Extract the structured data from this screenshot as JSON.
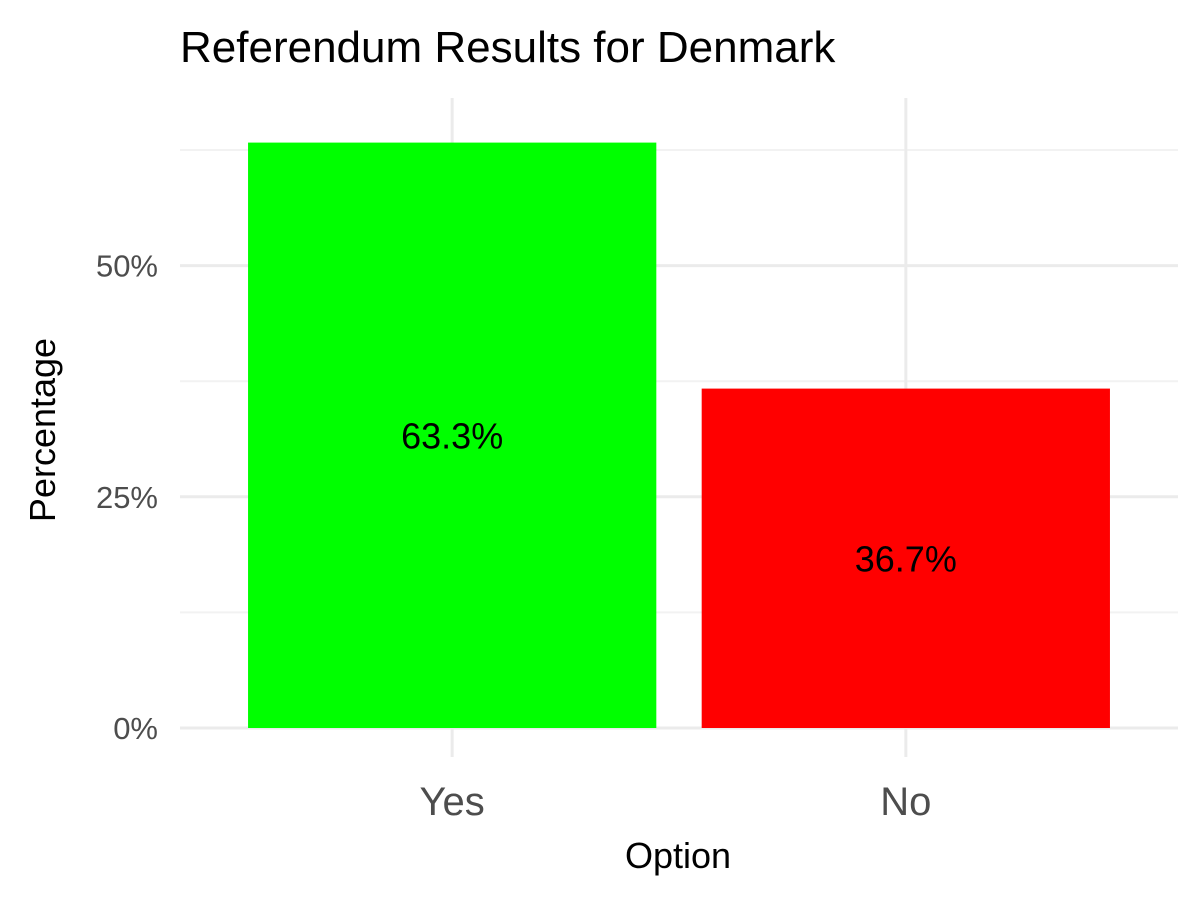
{
  "chart_data": {
    "type": "bar",
    "title": "Referendum Results for Denmark",
    "xlabel": "Option",
    "ylabel": "Percentage",
    "categories": [
      "Yes",
      "No"
    ],
    "values": [
      63.3,
      36.7
    ],
    "value_labels": [
      "63.3%",
      "36.7%"
    ],
    "colors": [
      "#00ff00",
      "#ff0000"
    ],
    "ylim": [
      0,
      66.5
    ],
    "y_ticks": [
      0,
      25,
      50
    ],
    "y_tick_labels": [
      "0%",
      "25%",
      "50%"
    ],
    "y_minor_ticks": [
      12.5,
      37.5,
      62.5
    ],
    "grid": true,
    "legend": "none"
  }
}
